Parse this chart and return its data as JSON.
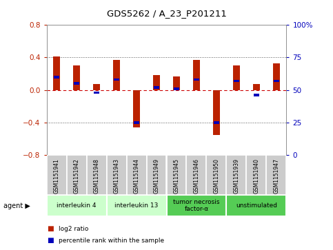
{
  "title": "GDS5262 / A_23_P201211",
  "samples": [
    "GSM1151941",
    "GSM1151942",
    "GSM1151948",
    "GSM1151943",
    "GSM1151944",
    "GSM1151949",
    "GSM1151945",
    "GSM1151946",
    "GSM1151950",
    "GSM1151939",
    "GSM1151940",
    "GSM1151947"
  ],
  "log2_ratio": [
    0.41,
    0.3,
    0.07,
    0.37,
    -0.46,
    0.18,
    0.17,
    0.37,
    -0.55,
    0.3,
    0.07,
    0.33
  ],
  "percentile": [
    60,
    55,
    48,
    58,
    25,
    52,
    51,
    58,
    25,
    57,
    46,
    57
  ],
  "ylim": [
    -0.8,
    0.8
  ],
  "y_ticks_left": [
    -0.8,
    -0.4,
    0.0,
    0.4,
    0.8
  ],
  "y_ticks_right": [
    0,
    25,
    50,
    75,
    100
  ],
  "agent_groups": [
    {
      "label": "interleukin 4",
      "start": 0,
      "end": 3,
      "color": "#ccffcc"
    },
    {
      "label": "interleukin 13",
      "start": 3,
      "end": 6,
      "color": "#ccffcc"
    },
    {
      "label": "tumor necrosis\nfactor-α",
      "start": 6,
      "end": 9,
      "color": "#55cc55"
    },
    {
      "label": "unstimulated",
      "start": 9,
      "end": 12,
      "color": "#55cc55"
    }
  ],
  "bar_color": "#bb2200",
  "percentile_color": "#0000bb",
  "dashed_color": "#cc0000",
  "dotted_color": "#555555",
  "bg_color": "#ffffff",
  "bar_width": 0.35,
  "pct_bar_width": 0.25,
  "pct_bar_height": 0.03,
  "legend_items": [
    {
      "label": "log2 ratio",
      "color": "#bb2200"
    },
    {
      "label": "percentile rank within the sample",
      "color": "#0000bb"
    }
  ],
  "sample_bg": "#cccccc",
  "agent_label": "agent ▶"
}
